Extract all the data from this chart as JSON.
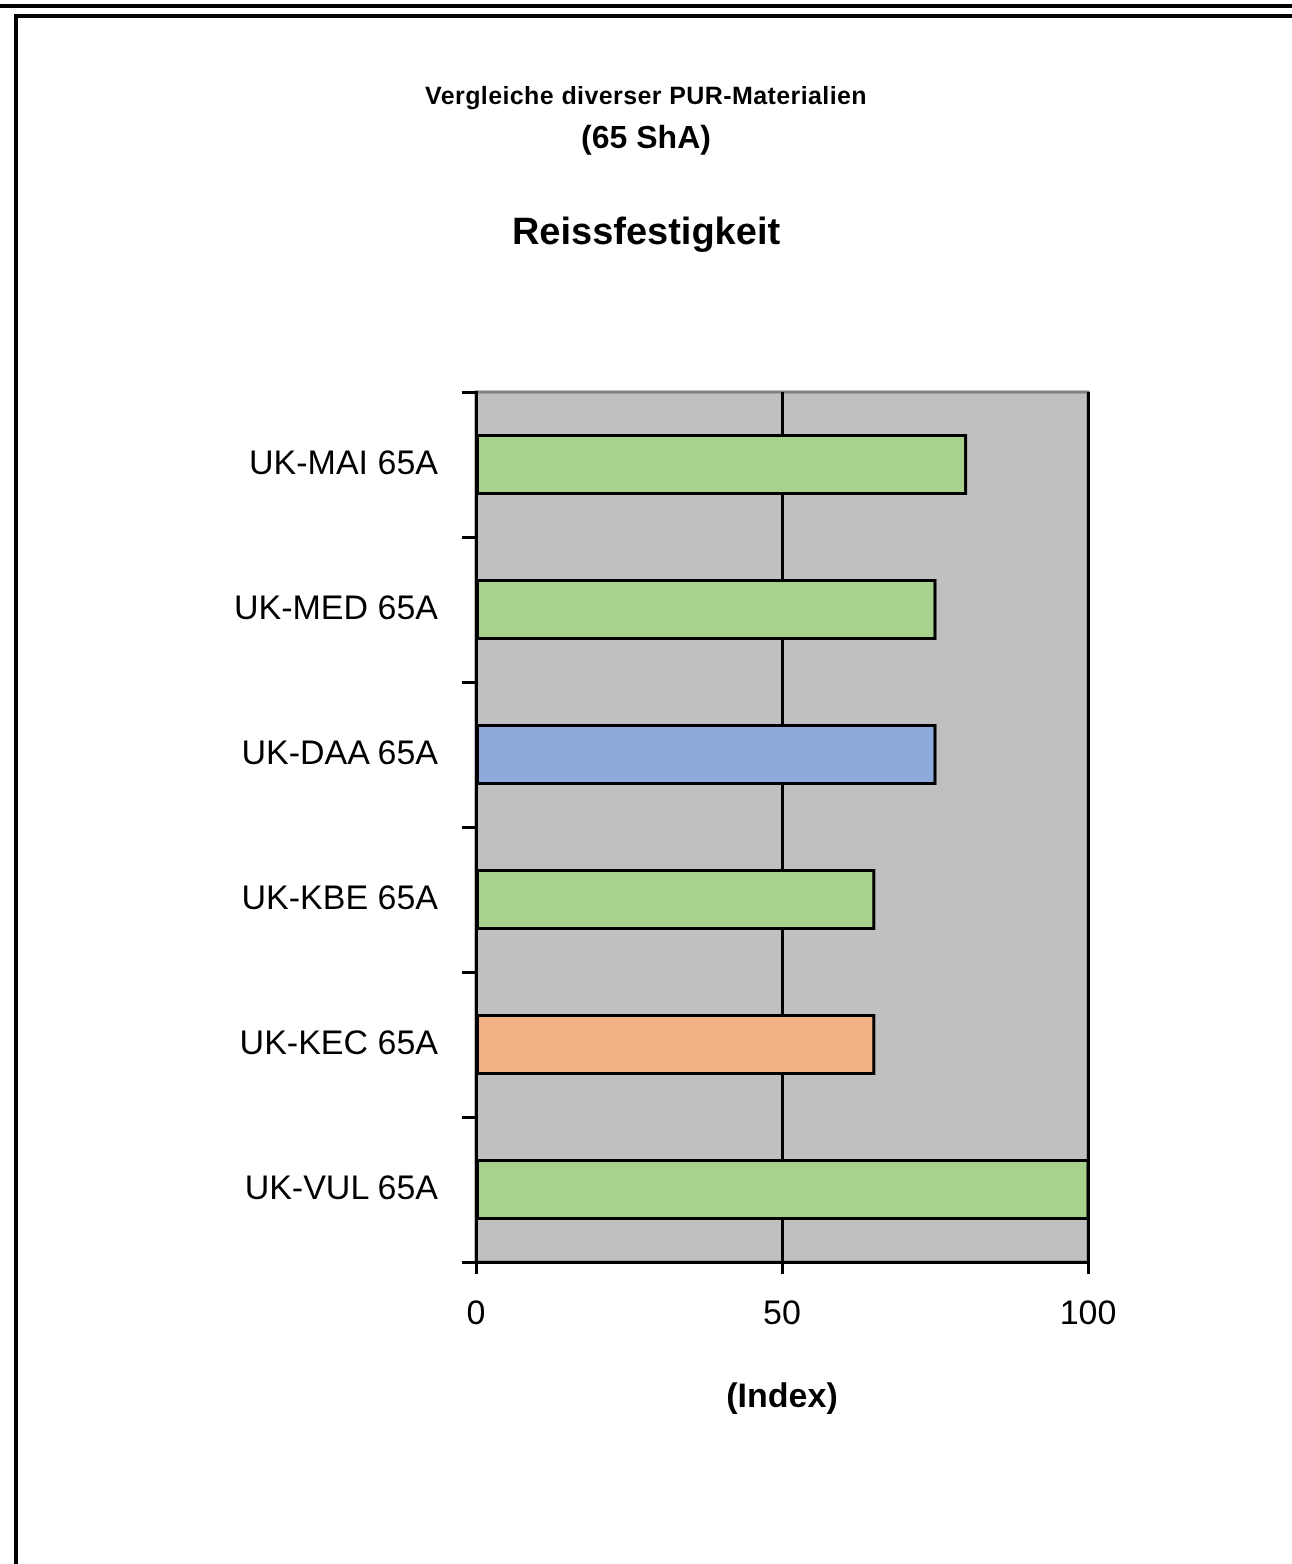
{
  "chart_data": {
    "type": "bar",
    "orientation": "horizontal",
    "annotations": [
      "Vergleiche diverser PUR-Materialien",
      "(65 ShA)"
    ],
    "title": "Reissfestigkeit",
    "xlabel": "(Index)",
    "categories": [
      "UK-MAI 65A",
      "UK-MED 65A",
      "UK-DAA 65A",
      "UK-KBE 65A",
      "UK-KEC 65A",
      "UK-VUL 65A"
    ],
    "values": [
      80,
      75,
      75,
      65,
      65,
      100
    ],
    "colors": [
      "#a9d18e",
      "#a9d18e",
      "#8eaadb",
      "#a9d18e",
      "#f4b183",
      "#a9d18e"
    ],
    "xlim": [
      0,
      100
    ],
    "xticks": [
      0,
      50,
      100
    ],
    "grid": "x"
  }
}
